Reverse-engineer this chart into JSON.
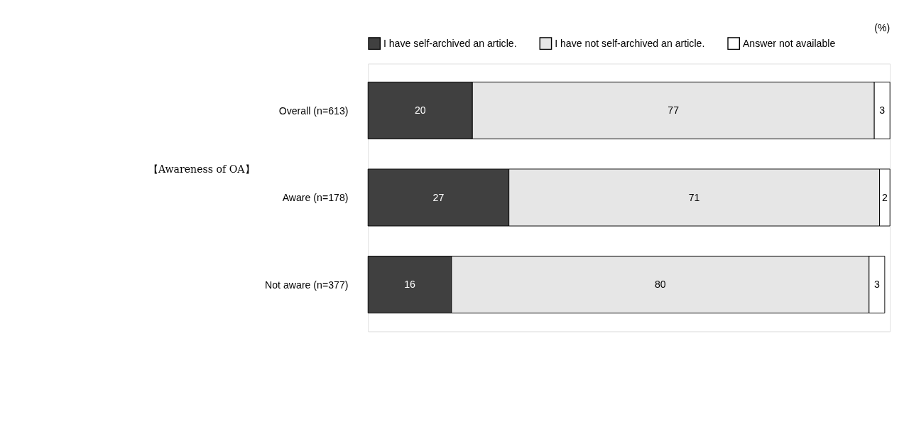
{
  "chart_data": {
    "type": "bar",
    "orientation": "horizontal",
    "stacked": true,
    "data_labels": true,
    "tick_labels": "y",
    "grid": false,
    "legend": "top",
    "ylabel": "【Awareness of OA】",
    "annotations": [
      "(%)"
    ],
    "categories": [
      "Overall (n=613)",
      "Aware (n=178)",
      "Not aware (n=377)"
    ],
    "series": [
      {
        "name": "I have self-archived an article.",
        "color": "#404040",
        "values": [
          20,
          27,
          16
        ]
      },
      {
        "name": "I have not self-archived an article.",
        "color": "#e6e6e6",
        "values": [
          77,
          71,
          80
        ]
      },
      {
        "name": "Answer not available",
        "color": "#ffffff",
        "values": [
          3,
          2,
          3
        ]
      }
    ]
  }
}
